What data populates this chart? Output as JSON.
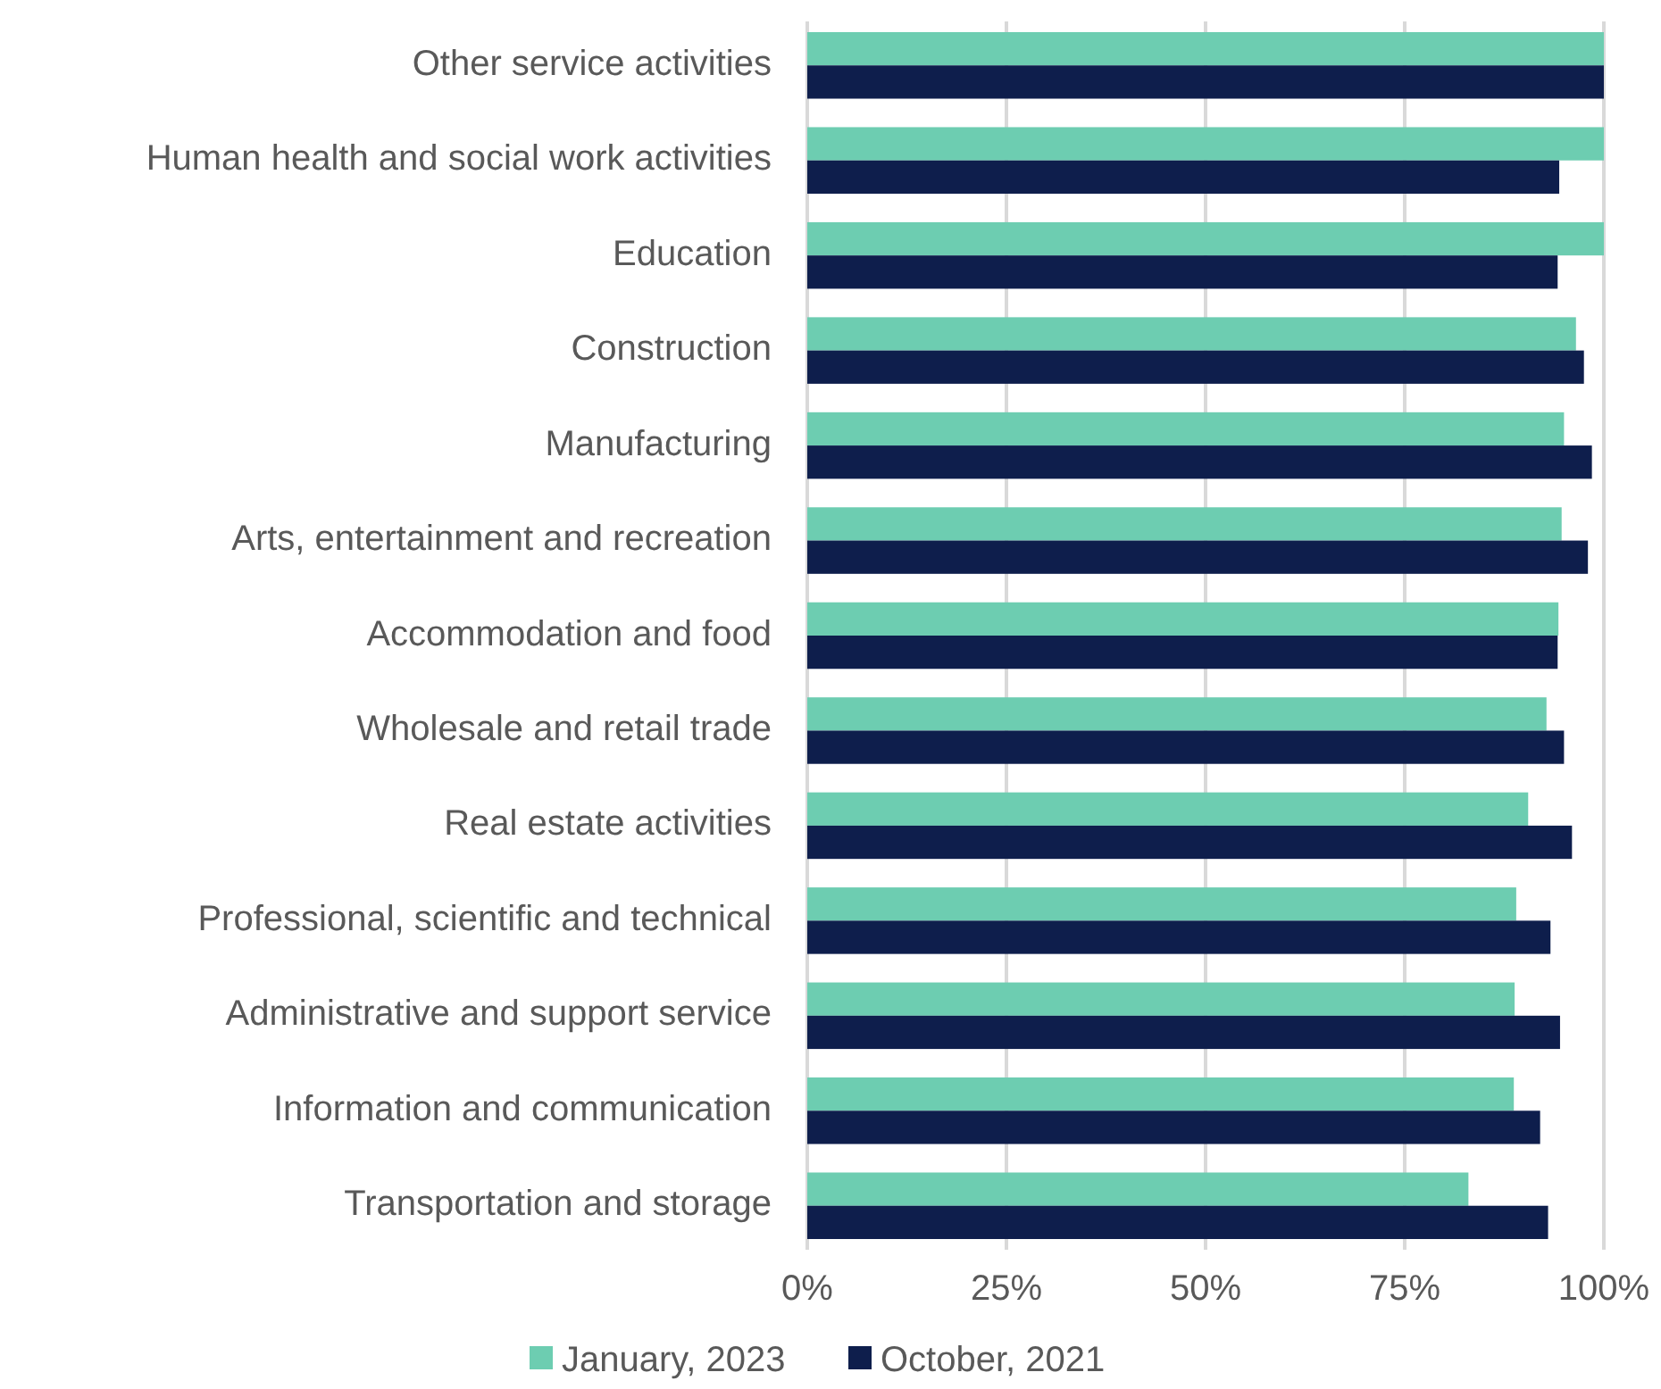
{
  "chart_data": {
    "type": "bar",
    "orientation": "horizontal",
    "categories": [
      "Other service activities",
      "Human health and social work activities",
      "Education",
      "Construction",
      "Manufacturing",
      "Arts, entertainment and recreation",
      "Accommodation and food",
      "Wholesale and retail trade",
      "Real estate activities",
      "Professional, scientific and technical",
      "Administrative and support service",
      "Information and communication",
      "Transportation and storage"
    ],
    "series": [
      {
        "name": "January, 2023",
        "color": "#6dcdb1",
        "values": [
          100,
          100,
          100,
          96.5,
          95,
          94.7,
          94.3,
          92.8,
          90.5,
          89,
          88.8,
          88.7,
          83
        ]
      },
      {
        "name": "October, 2021",
        "color": "#0e1e4c",
        "values": [
          100,
          94.4,
          94.2,
          97.5,
          98.5,
          98,
          94.2,
          95,
          96,
          93.3,
          94.5,
          92,
          93
        ]
      }
    ],
    "xlim": [
      0,
      100
    ],
    "xticks": [
      {
        "value": 0,
        "label": "0%"
      },
      {
        "value": 25,
        "label": "25%"
      },
      {
        "value": 50,
        "label": "50%"
      },
      {
        "value": 75,
        "label": "75%"
      },
      {
        "value": 100,
        "label": "100%"
      }
    ],
    "grid": "x",
    "legend": "bottom"
  }
}
